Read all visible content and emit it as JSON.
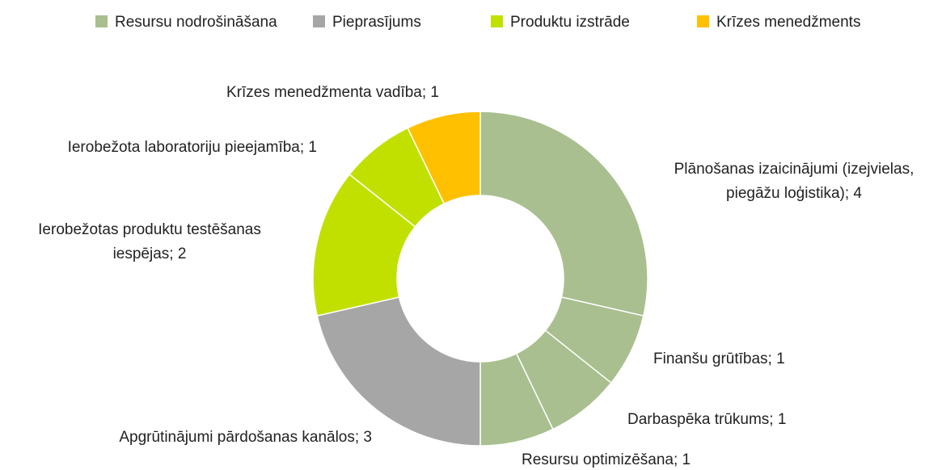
{
  "chart_data": {
    "type": "donut",
    "legend": [
      {
        "name": "Resursu nodrošināšana",
        "color": "#a9bf8f"
      },
      {
        "name": "Pieprasījums",
        "color": "#a6a6a6"
      },
      {
        "name": "Produktu izstrāde",
        "color": "#c2e000"
      },
      {
        "name": "Krīzes menedžments",
        "color": "#ffc000"
      }
    ],
    "values": [
      4,
      1,
      1,
      1,
      3,
      2,
      1,
      1
    ],
    "colors": [
      "#a9bf8f",
      "#a9bf8f",
      "#a9bf8f",
      "#a9bf8f",
      "#a6a6a6",
      "#c2e000",
      "#c2e000",
      "#ffc000"
    ],
    "value_labels": [
      [
        "Plānošanas izaicinājumi (izejvielas,",
        "piegāžu loģistika); 4"
      ],
      [
        "Finanšu grūtības; 1"
      ],
      [
        "Darbaspēka trūkums; 1"
      ],
      [
        "Resursu optimizēšana; 1"
      ],
      [
        "Apgrūtinājumi pārdošanas kanālos; 3"
      ],
      [
        "Ierobežotas produktu testēšanas",
        "iespējas; 2"
      ],
      [
        "Ierobežota laboratoriju pieejamība; 1"
      ],
      [
        "Krīzes menedžmenta vadība; 1"
      ]
    ]
  }
}
